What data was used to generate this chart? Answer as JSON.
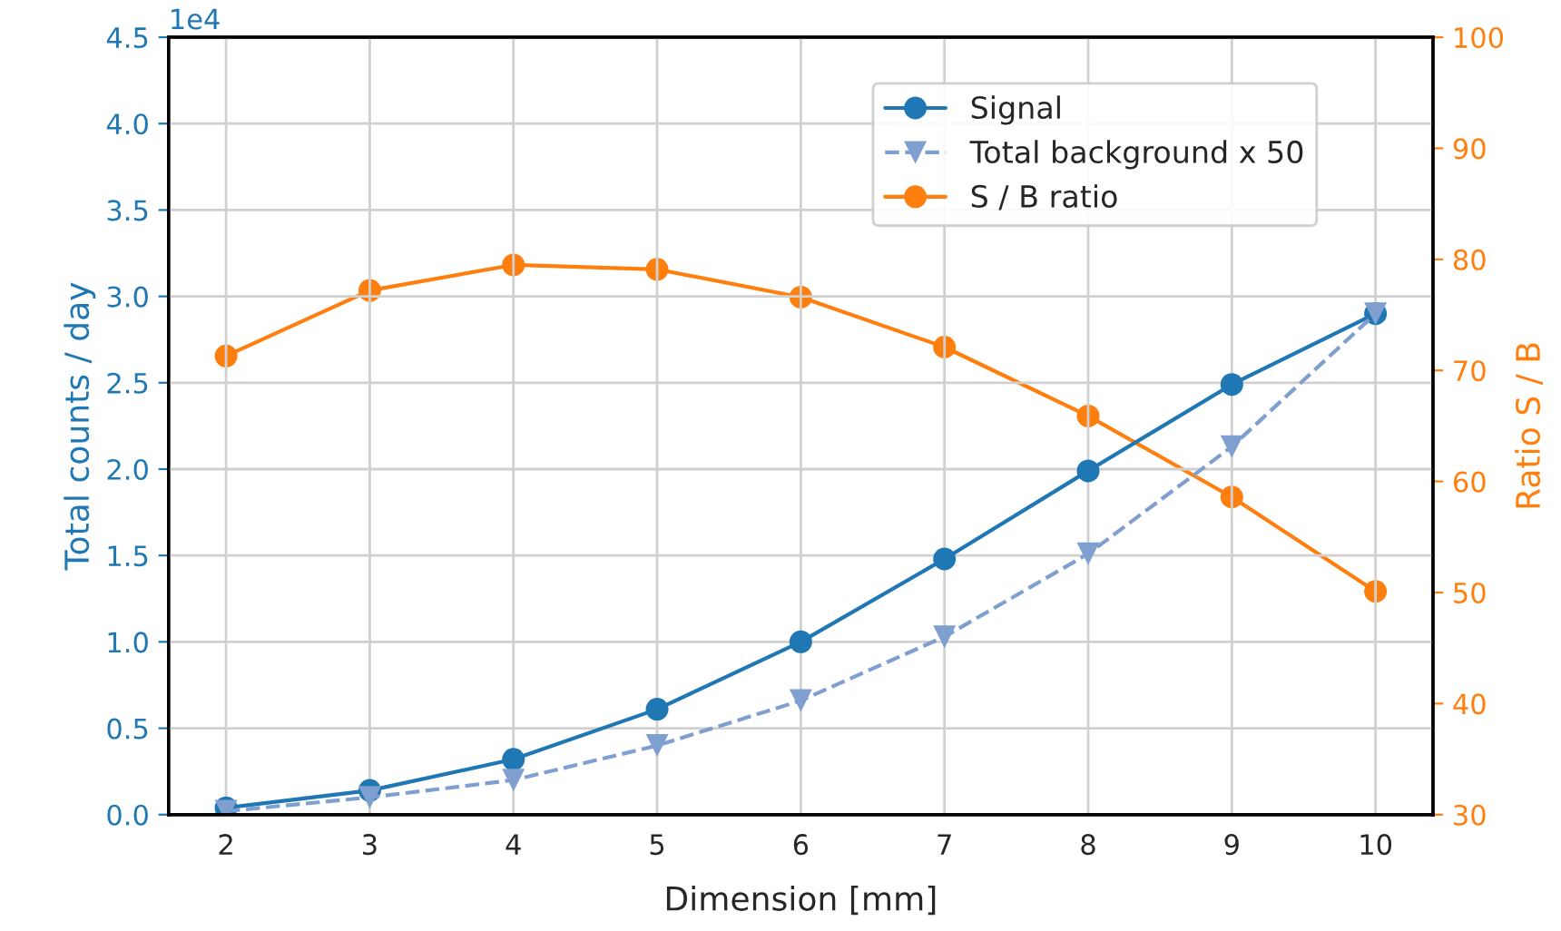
{
  "chart_data": {
    "type": "line",
    "xlabel": "Dimension [mm]",
    "ylabel": "Total counts / day",
    "y2label": "Ratio S / B",
    "x": [
      2,
      3,
      4,
      5,
      6,
      7,
      8,
      9,
      10
    ],
    "series": [
      {
        "name": "Signal",
        "color": "#1f77b4",
        "marker": "circle",
        "line_style": "solid",
        "values": [
          0.04,
          0.14,
          0.32,
          0.61,
          1.0,
          1.48,
          1.99,
          2.49,
          2.9
        ]
      },
      {
        "name": "Total background x 50",
        "color": "#7f9fd0",
        "marker": "triangle",
        "line_style": "dashed",
        "values": [
          0.02,
          0.1,
          0.2,
          0.4,
          0.66,
          1.03,
          1.51,
          2.13,
          2.9
        ]
      },
      {
        "name": "S / B ratio",
        "color": "#ff7f0e",
        "marker": "circle",
        "line_style": "solid",
        "axis": "y2",
        "values": [
          71.3,
          77.2,
          79.5,
          79.1,
          76.6,
          72.1,
          65.9,
          58.6,
          50.1
        ]
      }
    ],
    "xlim": [
      1.6,
      10.4
    ],
    "xticks": [
      2,
      3,
      4,
      5,
      6,
      7,
      8,
      9,
      10
    ],
    "ylim": [
      0,
      4.5
    ],
    "yticks": [
      {
        "value": 0,
        "label": "0.0"
      },
      0.5,
      {
        "value": 1,
        "label": "1.0"
      },
      1.5,
      {
        "value": 2,
        "label": "2.0"
      },
      2.5,
      {
        "value": 3,
        "label": "3.0"
      },
      3.5,
      {
        "value": 4,
        "label": "4.0"
      },
      4.5
    ],
    "y2lim": [
      30,
      100
    ],
    "y2ticks": [
      30,
      40,
      50,
      60,
      70,
      80,
      90,
      100
    ],
    "annotations": [
      "1e4"
    ],
    "grid": true,
    "legend": "top right"
  }
}
